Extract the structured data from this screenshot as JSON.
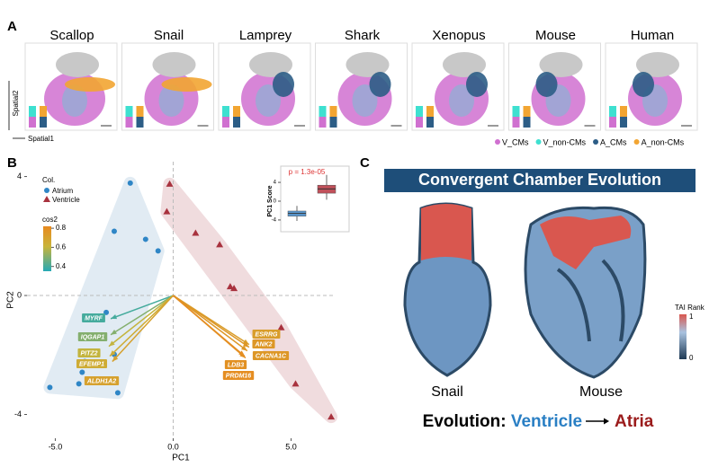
{
  "panel_a": {
    "label": "A",
    "species": [
      "Scallop",
      "Snail",
      "Lamprey",
      "Shark",
      "Xenopus",
      "Mouse",
      "Human"
    ],
    "y_axis": "Spatial2",
    "x_axis": "Spatial1",
    "legend": [
      {
        "name": "V_CMs",
        "color": "#d070d0"
      },
      {
        "name": "V_non-CMs",
        "color": "#3ee0d0"
      },
      {
        "name": "A_CMs",
        "color": "#2c5d86"
      },
      {
        "name": "A_non-CMs",
        "color": "#f2a532"
      }
    ]
  },
  "chart_data": {
    "type": "scatter",
    "label": "B",
    "xlabel": "PC1",
    "ylabel": "PC2",
    "xlim": [
      -6.2,
      6.85
    ],
    "ylim": [
      -4.8,
      4.5
    ],
    "xticks": [
      {
        "value": -5,
        "label": "-5.0"
      },
      {
        "value": 0,
        "label": "0.0"
      },
      {
        "value": 5,
        "label": "5.0"
      }
    ],
    "yticks": [
      -4,
      0,
      4
    ],
    "legend_title": "Col.",
    "series": [
      {
        "name": "Atrium",
        "color": "#2f86c6",
        "hull": "#dce8f2",
        "marker": "circle",
        "x": [
          -1.82,
          -2.5,
          -1.17,
          -0.64,
          -2.84,
          -2.5,
          -3.75,
          -3.86,
          -4.0,
          -5.23,
          -2.35
        ],
        "y": [
          3.78,
          2.16,
          1.89,
          1.5,
          -0.57,
          -1.98,
          -2.22,
          -2.58,
          -2.97,
          -3.09,
          -3.27
        ]
      },
      {
        "name": "Ventricle",
        "color": "#a8323e",
        "hull": "#eed6d9",
        "marker": "triangle",
        "x": [
          -0.15,
          -0.27,
          0.95,
          1.97,
          2.42,
          2.58,
          4.58,
          5.19,
          6.7
        ],
        "y": [
          3.75,
          2.82,
          2.1,
          1.71,
          0.3,
          0.24,
          -1.08,
          -2.97,
          -4.08
        ]
      }
    ],
    "cos2_title": "cos2",
    "clim": [
      0.35,
      0.82
    ],
    "cos2_ticks": [
      0.8,
      0.6,
      0.4
    ],
    "loadings": [
      {
        "label": "MYRF",
        "x": -2.65,
        "y": -0.78,
        "cos2": 0.4
      },
      {
        "label": "IQGAP1",
        "x": -2.65,
        "y": -1.32,
        "cos2": 0.5
      },
      {
        "label": "PITZ2",
        "x": -2.73,
        "y": -1.71,
        "cos2": 0.6
      },
      {
        "label": "EFEMP1",
        "x": -2.69,
        "y": -2.04,
        "cos2": 0.65
      },
      {
        "label": "ALDH1A2",
        "x": -2.58,
        "y": -2.22,
        "cos2": 0.7
      },
      {
        "label": "ESRRG",
        "x": 3.22,
        "y": -1.65,
        "cos2": 0.72
      },
      {
        "label": "ANK2",
        "x": 3.22,
        "y": -1.74,
        "cos2": 0.75
      },
      {
        "label": "CACNA1C",
        "x": 3.14,
        "y": -1.86,
        "cos2": 0.75
      },
      {
        "label": "LDB3",
        "x": 3.07,
        "y": -2.1,
        "cos2": 0.78
      },
      {
        "label": "PRDM16",
        "x": 3.03,
        "y": -2.04,
        "cos2": 0.8
      }
    ],
    "inset": {
      "ylabel": "PC1 Score",
      "annotation": "p = 1.3e-05",
      "ylim": [
        -6.5,
        6.5
      ],
      "yticks": [
        -4,
        0,
        4
      ],
      "boxes": [
        {
          "min": -4.2,
          "q1": -3.2,
          "median": -2.6,
          "q3": -2.1,
          "max": -1.0,
          "color": "#5b9bd5"
        },
        {
          "min": 0.3,
          "q1": 1.7,
          "median": 2.6,
          "q3": 3.4,
          "max": 5.6,
          "color": "#c0505a"
        }
      ]
    }
  },
  "panel_c": {
    "label": "C",
    "title": "Convergent Chamber Evolution",
    "species": [
      "Snail",
      "Mouse"
    ],
    "colorbar_title": "TAI Rank",
    "colorbar_ticks": [
      1,
      0
    ],
    "evolution": "Evolution:",
    "from": "Ventricle",
    "to": "Atria"
  }
}
